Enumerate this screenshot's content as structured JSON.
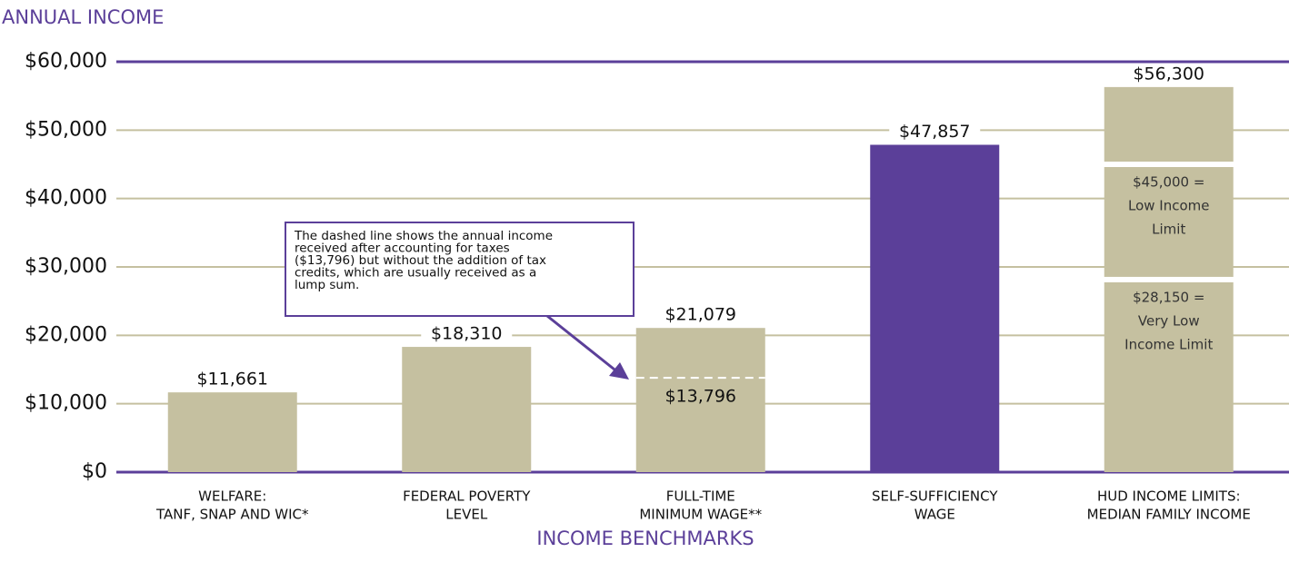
{
  "chart_data": {
    "type": "bar",
    "title": "ANNUAL INCOME",
    "x_label": "INCOME BENCHMARKS",
    "categories": [
      [
        "WELFARE:",
        "TANF, SNAP AND WIC*"
      ],
      [
        "FEDERAL POVERTY",
        "LEVEL"
      ],
      [
        "FULL-TIME",
        "MINIMUM WAGE**"
      ],
      [
        "SELF-SUFFICIENCY",
        "WAGE"
      ],
      [
        "HUD INCOME LIMITS:",
        "MEDIAN FAMILY INCOME"
      ]
    ],
    "values": [
      11661,
      18310,
      21079,
      47857,
      56300
    ],
    "value_labels": [
      "$11,661",
      "$18,310",
      "$21,079",
      "$47,857",
      "$56,300"
    ],
    "colors": [
      "#c5c0a0",
      "#c5c0a0",
      "#c5c0a0",
      "#5b3f99",
      "#c5c0a0"
    ],
    "ylim": [
      0,
      60000
    ],
    "yticks": [
      {
        "value": 0,
        "label": "$0"
      },
      {
        "value": 10000,
        "label": "$10,000"
      },
      {
        "value": 20000,
        "label": "$20,000"
      },
      {
        "value": 30000,
        "label": "$30,000"
      },
      {
        "value": 40000,
        "label": "$40,000"
      },
      {
        "value": 50000,
        "label": "$50,000"
      },
      {
        "value": 60000,
        "label": "$60,000"
      }
    ],
    "grid": true,
    "after_tax": {
      "value": 13796,
      "label": "$13,796"
    },
    "hud_limits": [
      {
        "value": 28150,
        "label_lines": [
          "$28,150 =",
          "Very Low",
          "Income Limit"
        ]
      },
      {
        "value": 45000,
        "label_lines": [
          "$45,000 =",
          "Low Income",
          "Limit"
        ]
      }
    ],
    "annotation": [
      "The dashed line shows the annual income",
      "received after accounting for taxes",
      "($13,796) but without the addition of tax",
      "credits, which are usually received as a",
      "lump sum."
    ]
  }
}
